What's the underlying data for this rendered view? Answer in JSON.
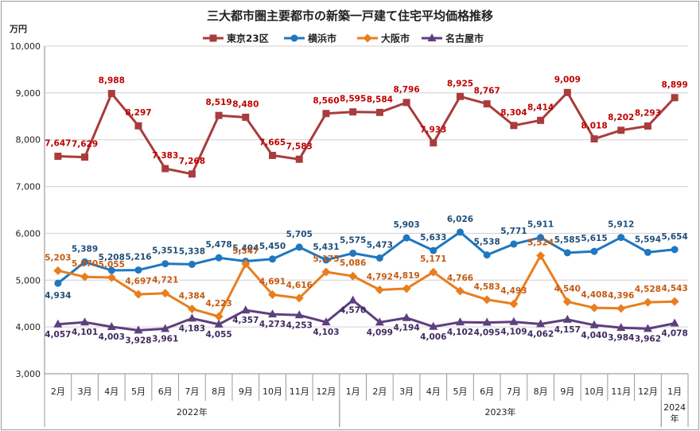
{
  "chart_data": {
    "type": "line",
    "title": "三大都市圏主要都市の新築一戸建て住宅平均価格推移",
    "ylabel": "万円",
    "ylim": [
      3000,
      10000
    ],
    "yticks": [
      "3,000",
      "4,000",
      "5,000",
      "6,000",
      "7,000",
      "8,000",
      "9,000",
      "10,000"
    ],
    "grid": true,
    "legend_position": "top",
    "categories": [
      "2月",
      "3月",
      "4月",
      "5月",
      "6月",
      "7月",
      "8月",
      "9月",
      "10月",
      "11月",
      "12月",
      "1月",
      "2月",
      "3月",
      "4月",
      "5月",
      "6月",
      "7月",
      "8月",
      "9月",
      "10月",
      "11月",
      "12月",
      "1月"
    ],
    "year_groups": [
      {
        "label": "2022年",
        "start": 0,
        "end": 10
      },
      {
        "label": "2023年",
        "start": 11,
        "end": 22
      },
      {
        "label": "2024年",
        "start": 23,
        "end": 23
      }
    ],
    "series": [
      {
        "name": "東京23区",
        "color": "#a93c3c",
        "label_color": "#c00000",
        "marker": "square",
        "values": [
          7647,
          7629,
          8988,
          8297,
          7383,
          7268,
          8519,
          8480,
          7665,
          7583,
          8560,
          8595,
          8584,
          8796,
          7933,
          8925,
          8767,
          8304,
          8414,
          9009,
          8018,
          8202,
          8293,
          8899
        ],
        "labels": [
          "7,647",
          "7,629",
          "8,988",
          "8,297",
          "7,383",
          "7,268",
          "8,519",
          "8,480",
          "7,665",
          "7,583",
          "8,560",
          "8,595",
          "8,584",
          "8,796",
          "7,933",
          "8,925",
          "8,767",
          "8,304",
          "8,414",
          "9,009",
          "8,018",
          "8,202",
          "8,293",
          "8,899"
        ]
      },
      {
        "name": "横浜市",
        "color": "#1f77c0",
        "label_color": "#1f4e79",
        "marker": "circle",
        "values": [
          4934,
          5389,
          5208,
          5216,
          5351,
          5338,
          5478,
          5404,
          5450,
          5705,
          5431,
          5575,
          5473,
          5903,
          5633,
          6026,
          5538,
          5771,
          5911,
          5585,
          5615,
          5912,
          5594,
          5654
        ],
        "labels": [
          "4,934",
          "5,389",
          "5,208",
          "5,216",
          "5,351",
          "5,338",
          "5,478",
          "5,404",
          "5,450",
          "5,705",
          "5,431",
          "5,575",
          "5,473",
          "5,903",
          "5,633",
          "6,026",
          "5,538",
          "5,771",
          "5,911",
          "5,585",
          "5,615",
          "5,912",
          "5,594",
          "5,654"
        ]
      },
      {
        "name": "大阪市",
        "color": "#e87e1e",
        "label_color": "#c55a11",
        "marker": "diamond",
        "values": [
          5203,
          5070,
          5055,
          4697,
          4721,
          4384,
          4223,
          5347,
          4691,
          4616,
          5175,
          5086,
          4792,
          4819,
          5171,
          4766,
          4583,
          4493,
          5524,
          4540,
          4408,
          4396,
          4528,
          4543
        ],
        "labels": [
          "5,203",
          "5,070",
          "5,055",
          "4,697",
          "4,721",
          "4,384",
          "4,223",
          "5,347",
          "4,691",
          "4,616",
          "5,175",
          "5,086",
          "4,792",
          "4,819",
          "5,171",
          "4,766",
          "4,583",
          "4,493",
          "5,524",
          "4,540",
          "4,408",
          "4,396",
          "4,528",
          "4,543"
        ]
      },
      {
        "name": "名古屋市",
        "color": "#5e3f7e",
        "label_color": "#3f2a5e",
        "marker": "triangle",
        "values": [
          4057,
          4101,
          4003,
          3928,
          3961,
          4183,
          4055,
          4357,
          4273,
          4253,
          4103,
          4570,
          4099,
          4194,
          4006,
          4102,
          4095,
          4109,
          4062,
          4157,
          4040,
          3984,
          3962,
          4078
        ],
        "labels": [
          "4,057",
          "4,101",
          "4,003",
          "3,928",
          "3,961",
          "4,183",
          "4,055",
          "4,357",
          "4,273",
          "4,253",
          "4,103",
          "4,570",
          "4,099",
          "4,194",
          "4,006",
          "4,102",
          "4,095",
          "4,109",
          "4,062",
          "4,157",
          "4,040",
          "3,984",
          "3,962",
          "4,078"
        ]
      }
    ]
  }
}
